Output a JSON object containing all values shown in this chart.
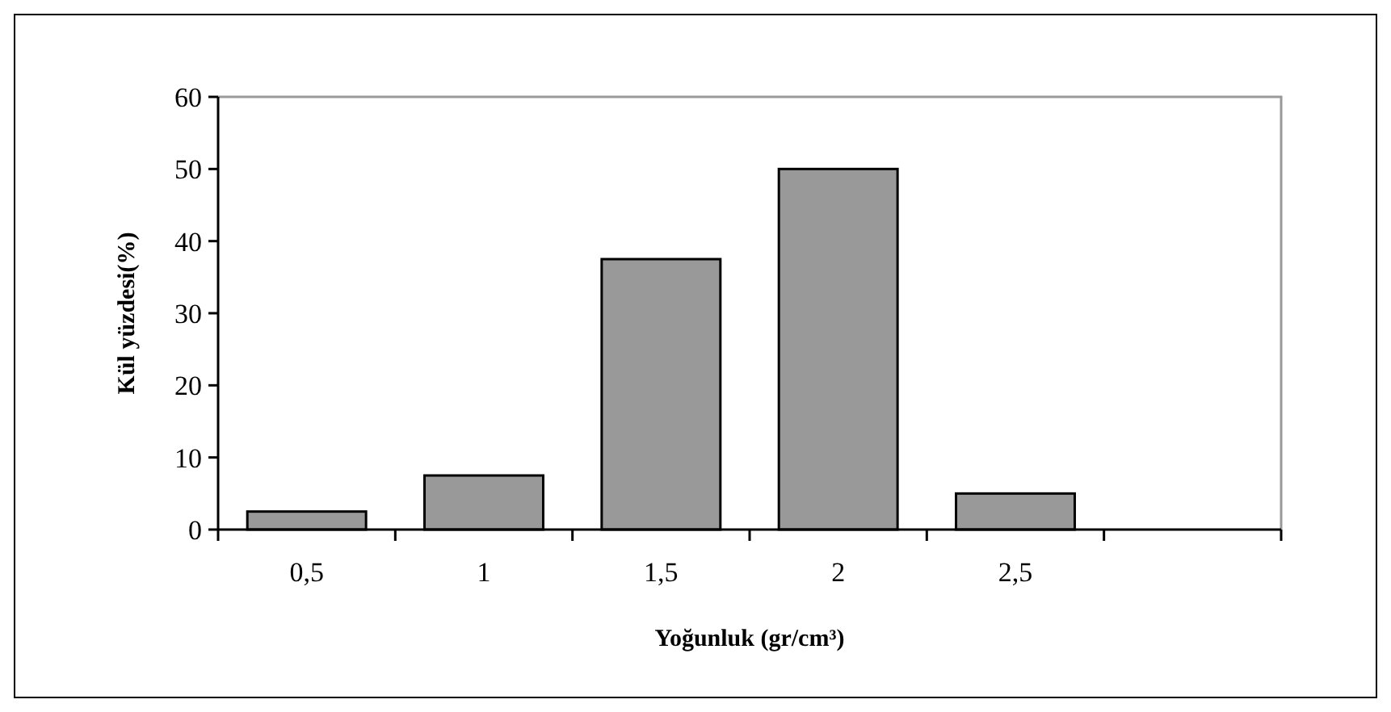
{
  "chart_data": {
    "type": "bar",
    "xlabel": "Yoğunluk (gr/cm³)",
    "ylabel": "Kül yüzdesi(%)",
    "categories": [
      "0,5",
      "1",
      "1,5",
      "2",
      "2,5",
      null
    ],
    "values": [
      2.5,
      7.5,
      37.5,
      50,
      5,
      null
    ],
    "color": "#999999",
    "ylim": [
      0,
      60
    ],
    "yticks": [
      0,
      10,
      20,
      30,
      40,
      50,
      60
    ],
    "grid": false
  }
}
